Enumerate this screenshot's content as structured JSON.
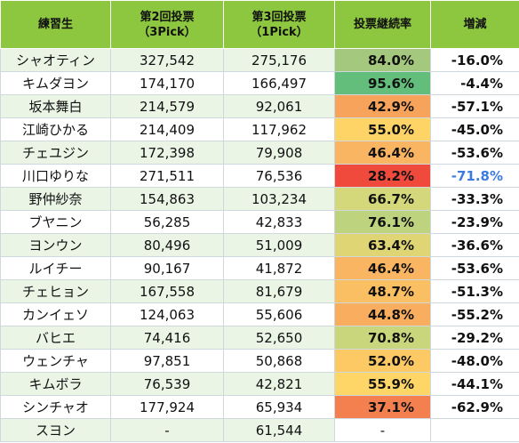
{
  "headers": {
    "name": "練習生",
    "vote2_line1": "第2回投票",
    "vote2_line2": "（3Pick）",
    "vote3_line1": "第3回投票",
    "vote3_line2": "（1Pick）",
    "rate": "投票継続率",
    "diff": "増減"
  },
  "rows": [
    {
      "name": "シャオティン",
      "vote2": "327,542",
      "vote3": "275,176",
      "rate": "84.0%",
      "rate_color": "#a4c97e",
      "diff": "-16.0%",
      "highlight": false
    },
    {
      "name": "キムダヨン",
      "vote2": "174,170",
      "vote3": "166,497",
      "rate": "95.6%",
      "rate_color": "#63be7b",
      "diff": "-4.4%",
      "highlight": false
    },
    {
      "name": "坂本舞白",
      "vote2": "214,579",
      "vote3": "92,061",
      "rate": "42.9%",
      "rate_color": "#f7a35c",
      "diff": "-57.1%",
      "highlight": false
    },
    {
      "name": "江崎ひかる",
      "vote2": "214,409",
      "vote3": "117,962",
      "rate": "55.0%",
      "rate_color": "#fed467",
      "diff": "-45.0%",
      "highlight": false
    },
    {
      "name": "チェユジン",
      "vote2": "172,398",
      "vote3": "79,908",
      "rate": "46.4%",
      "rate_color": "#f9b561",
      "diff": "-53.6%",
      "highlight": false
    },
    {
      "name": "川口ゆりな",
      "vote2": "271,511",
      "vote3": "76,536",
      "rate": "28.2%",
      "rate_color": "#ef4a3c",
      "diff": "-71.8%",
      "highlight": true
    },
    {
      "name": "野仲紗奈",
      "vote2": "154,863",
      "vote3": "103,234",
      "rate": "66.7%",
      "rate_color": "#d4d77a",
      "diff": "-33.3%",
      "highlight": false
    },
    {
      "name": "ブヤニン",
      "vote2": "56,285",
      "vote3": "42,833",
      "rate": "76.1%",
      "rate_color": "#bdd37d",
      "diff": "-23.9%",
      "highlight": false
    },
    {
      "name": "ヨンウン",
      "vote2": "80,496",
      "vote3": "51,009",
      "rate": "63.4%",
      "rate_color": "#e0d574",
      "diff": "-36.6%",
      "highlight": false
    },
    {
      "name": "ルイチー",
      "vote2": "90,167",
      "vote3": "41,872",
      "rate": "46.4%",
      "rate_color": "#f9b561",
      "diff": "-53.6%",
      "highlight": false
    },
    {
      "name": "チェヒョン",
      "vote2": "167,558",
      "vote3": "81,679",
      "rate": "48.7%",
      "rate_color": "#fbbf63",
      "diff": "-51.3%",
      "highlight": false
    },
    {
      "name": "カンイェソ",
      "vote2": "124,063",
      "vote3": "55,606",
      "rate": "44.8%",
      "rate_color": "#f8ad5f",
      "diff": "-55.2%",
      "highlight": false
    },
    {
      "name": "バヒエ",
      "vote2": "74,416",
      "vote3": "52,650",
      "rate": "70.8%",
      "rate_color": "#c9d67c",
      "diff": "-29.2%",
      "highlight": false
    },
    {
      "name": "ウェンチャ",
      "vote2": "97,851",
      "vote3": "50,868",
      "rate": "52.0%",
      "rate_color": "#fdc965",
      "diff": "-48.0%",
      "highlight": false
    },
    {
      "name": "キムボラ",
      "vote2": "76,539",
      "vote3": "42,821",
      "rate": "55.9%",
      "rate_color": "#fed668",
      "diff": "-44.1%",
      "highlight": false
    },
    {
      "name": "シンチャオ",
      "vote2": "177,924",
      "vote3": "65,934",
      "rate": "37.1%",
      "rate_color": "#f47f4f",
      "diff": "-62.9%",
      "highlight": false
    },
    {
      "name": "スヨン",
      "vote2": "-",
      "vote3": "61,544",
      "rate": "-",
      "rate_color": "#ffffff",
      "diff": "",
      "highlight": false
    }
  ]
}
